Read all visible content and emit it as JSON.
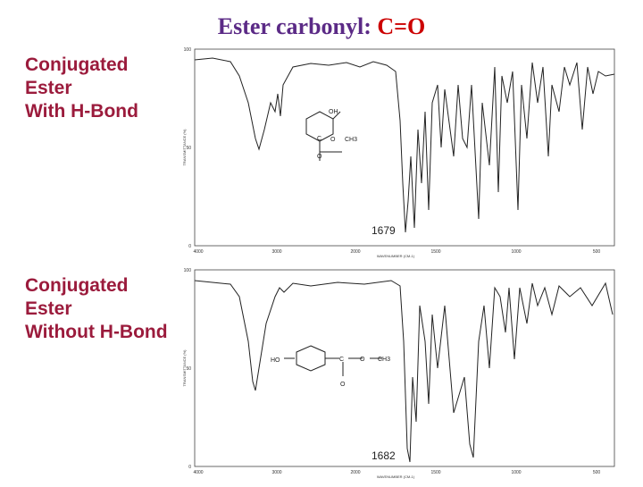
{
  "title": {
    "main": "Ester carbonyl:",
    "highlight": "C=O"
  },
  "panels": [
    {
      "label": [
        "Conjugated",
        "Ester",
        "With H-Bond"
      ],
      "peak_label": "1679",
      "structure": [
        "OH",
        "C",
        "O",
        "CH3",
        "O"
      ]
    },
    {
      "label": [
        "Conjugated",
        "Ester",
        "Without H-Bond"
      ],
      "peak_label": "1682",
      "structure": [
        "HO",
        "C",
        "O",
        "CH3",
        "O"
      ]
    }
  ],
  "axis": {
    "y_ticks": [
      "100",
      "50",
      "0"
    ],
    "x_ticks": [
      "4000",
      "3000",
      "2000",
      "1500",
      "1000",
      "500"
    ],
    "y_label": "TRANSMITTANCE (%)",
    "x_label": "WAVENUMBER (CM-1)"
  }
}
